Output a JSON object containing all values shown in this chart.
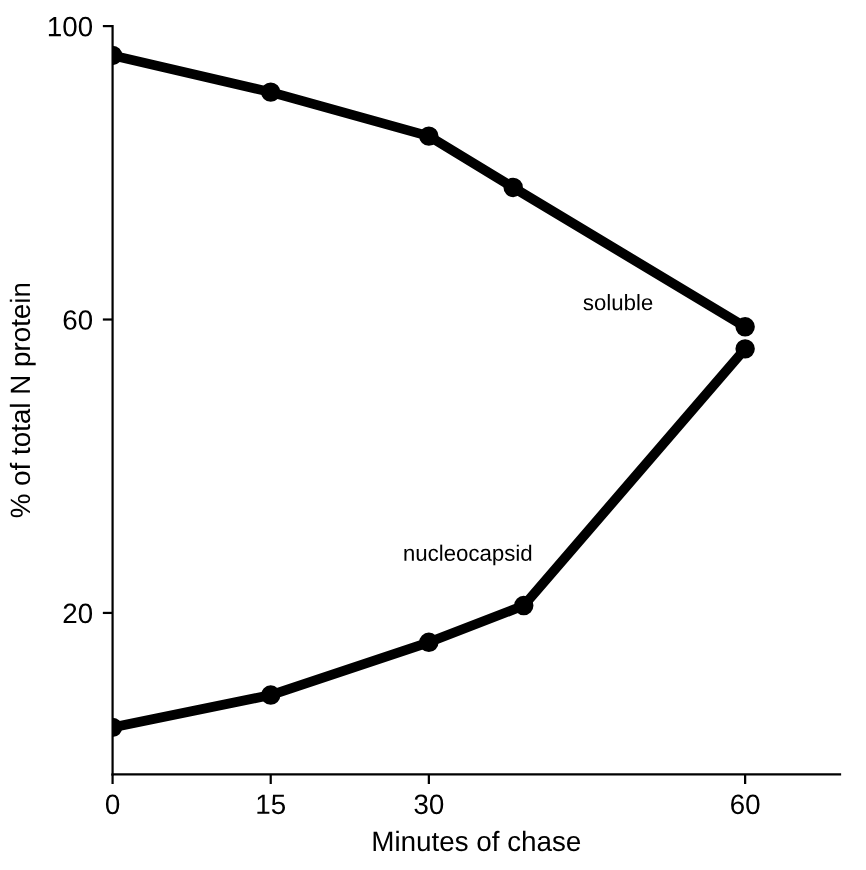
{
  "chart_data": {
    "type": "line",
    "xlabel": "Minutes of chase",
    "ylabel": "% of total N protein",
    "xlim": [
      0,
      69
    ],
    "ylim": [
      -2,
      100
    ],
    "xticks": [
      0,
      15,
      30,
      60
    ],
    "yticks": [
      20,
      60,
      100
    ],
    "grid": false,
    "legend": false,
    "marker": "circle",
    "line_style": "solid",
    "series": [
      {
        "name": "soluble",
        "color": "#000000",
        "x": [
          0,
          15,
          30,
          38,
          60
        ],
        "values": [
          96,
          91,
          85,
          78,
          59
        ]
      },
      {
        "name": "nucleocapsid",
        "color": "#000000",
        "x": [
          0,
          15,
          30,
          39,
          60
        ],
        "values": [
          4.4,
          8.8,
          16,
          21,
          56
        ]
      }
    ]
  }
}
